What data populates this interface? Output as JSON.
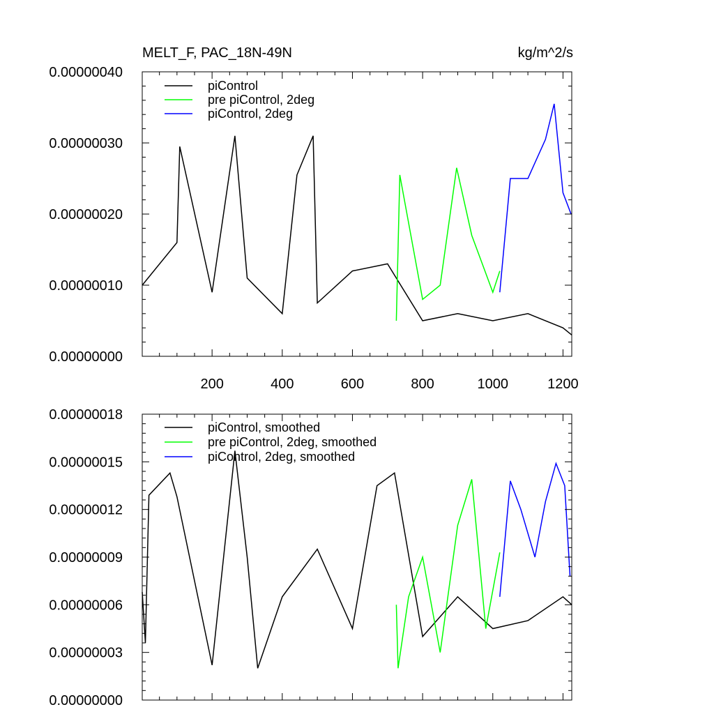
{
  "chart_data": [
    {
      "type": "line",
      "title": "MELT_F, PAC_18N-49N",
      "units": "kg/m^2/s",
      "xlabel": "",
      "ylabel": "",
      "xlim": [
        1,
        1225
      ],
      "ylim": [
        0.0,
        4e-07
      ],
      "x_ticks": [
        200,
        400,
        600,
        800,
        1000,
        1200
      ],
      "x_tick_labels": [
        "200",
        "400",
        "600",
        "800",
        "1000",
        "1200"
      ],
      "y_ticks": [
        0.0,
        1e-07,
        2e-07,
        3e-07,
        4e-07
      ],
      "y_tick_labels": [
        "0.00000000",
        "0.00000010",
        "0.00000020",
        "0.00000030",
        "0.00000040"
      ],
      "grid": false,
      "legend_position": "top-left",
      "series": [
        {
          "name": "piControl",
          "color": "#000000",
          "x": [
            1,
            100,
            108,
            200,
            265,
            300,
            400,
            442,
            488,
            500,
            600,
            700,
            800,
            900,
            1000,
            1100,
            1200,
            1225
          ],
          "y": [
            1e-07,
            1.6e-07,
            2.95e-07,
            9e-08,
            3.1e-07,
            1.1e-07,
            6e-08,
            2.55e-07,
            3.1e-07,
            7.5e-08,
            1.2e-07,
            1.3e-07,
            5e-08,
            6e-08,
            5e-08,
            6e-08,
            4e-08,
            3e-08
          ]
        },
        {
          "name": "pre piControl, 2deg",
          "color": "#00ff00",
          "x": [
            725,
            735,
            800,
            850,
            897,
            940,
            1000,
            1020
          ],
          "y": [
            5e-08,
            2.55e-07,
            8e-08,
            1e-07,
            2.65e-07,
            1.7e-07,
            9e-08,
            1.2e-07
          ]
        },
        {
          "name": "piControl, 2deg",
          "color": "#0000ff",
          "x": [
            1020,
            1050,
            1100,
            1150,
            1175,
            1200,
            1223
          ],
          "y": [
            9e-08,
            2.5e-07,
            2.5e-07,
            3.05e-07,
            3.55e-07,
            2.3e-07,
            2e-07
          ]
        }
      ]
    },
    {
      "type": "line",
      "title": "",
      "xlabel": "",
      "ylabel": "",
      "xlim": [
        1,
        1225
      ],
      "ylim": [
        0.0,
        1.8e-07
      ],
      "x_ticks": [
        200,
        400,
        600,
        800,
        1000,
        1200
      ],
      "y_ticks": [
        0.0,
        3e-08,
        6e-08,
        9e-08,
        1.2e-07,
        1.5e-07,
        1.8e-07
      ],
      "y_tick_labels": [
        "0.00000000",
        "0.00000003",
        "0.00000006",
        "0.00000009",
        "0.00000012",
        "0.00000015",
        "0.00000018"
      ],
      "grid": false,
      "legend_position": "top-left",
      "series": [
        {
          "name": "piControl, smoothed",
          "color": "#000000",
          "x": [
            1,
            10,
            20,
            80,
            100,
            200,
            265,
            300,
            330,
            400,
            500,
            600,
            670,
            720,
            800,
            900,
            1000,
            1100,
            1200,
            1225
          ],
          "y": [
            6.8e-08,
            3.6e-08,
            1.29e-07,
            1.43e-07,
            1.28e-07,
            2.2e-08,
            1.57e-07,
            9e-08,
            2e-08,
            6.5e-08,
            9.5e-08,
            4.5e-08,
            1.35e-07,
            1.43e-07,
            4e-08,
            6.5e-08,
            4.5e-08,
            5e-08,
            6.5e-08,
            6e-08
          ]
        },
        {
          "name": "pre piControl, 2deg, smoothed",
          "color": "#00ff00",
          "x": [
            725,
            730,
            760,
            800,
            850,
            900,
            940,
            980,
            1020
          ],
          "y": [
            6e-08,
            2e-08,
            6.5e-08,
            9e-08,
            3e-08,
            1.1e-07,
            1.39e-07,
            4.5e-08,
            9.3e-08
          ]
        },
        {
          "name": "piControl, 2deg, smoothed",
          "color": "#0000ff",
          "x": [
            1020,
            1050,
            1080,
            1120,
            1150,
            1180,
            1205,
            1220
          ],
          "y": [
            6.5e-08,
            1.38e-07,
            1.2e-07,
            9e-08,
            1.25e-07,
            1.49e-07,
            1.35e-07,
            7.8e-08
          ]
        }
      ]
    }
  ]
}
